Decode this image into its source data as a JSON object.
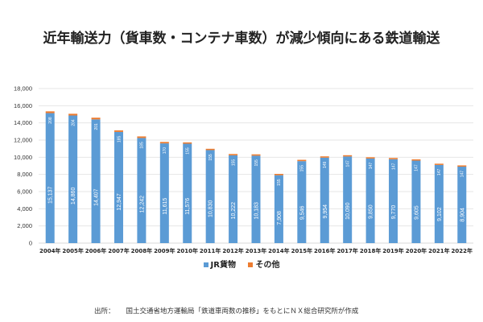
{
  "title": "近年輸送力（貨車数・コンテナ車数）が減少傾向にある鉄道輸送",
  "source": {
    "label": "出所：",
    "text": "国土交通省地方運輸局「鉄道車両数の推移」をもとにＮＸ総合研究所が作成"
  },
  "colors": {
    "jr": "#5b9bd5",
    "other": "#ed7d31",
    "grid": "#e6e6e6"
  },
  "chart_data": {
    "type": "bar",
    "stacked": true,
    "title": "近年輸送力（貨車数・コンテナ車数）が減少傾向にある鉄道輸送",
    "xlabel": "",
    "ylabel": "",
    "ylim": [
      0,
      18000
    ],
    "yticks": [
      0,
      2000,
      4000,
      6000,
      8000,
      10000,
      12000,
      14000,
      16000,
      18000
    ],
    "ytick_labels": [
      "0",
      "2,000",
      "4,000",
      "6,000",
      "8,000",
      "10,000",
      "12,000",
      "14,000",
      "16,000",
      "18,000"
    ],
    "grid": true,
    "legend_position": "bottom",
    "categories": [
      "2004年",
      "2005年",
      "2006年",
      "2007年",
      "2008年",
      "2009年",
      "2010年",
      "2011年",
      "2012年",
      "2013年",
      "2014年",
      "2015年",
      "2016年",
      "2017年",
      "2018年",
      "2019年",
      "2020年",
      "2021年",
      "2022年"
    ],
    "series": [
      {
        "name": "JR貨物",
        "values": [
          15137,
          14860,
          14407,
          12947,
          12242,
          11615,
          11576,
          10830,
          10222,
          10183,
          7908,
          9546,
          9954,
          10090,
          9850,
          9770,
          9605,
          9102,
          8904
        ],
        "labels": [
          "15,137",
          "14,860",
          "14,407",
          "12,947",
          "12,242",
          "11,615",
          "11,576",
          "10,830",
          "10,222",
          "10,183",
          "7,908",
          "9,546",
          "9,954",
          "10,090",
          "9,850",
          "9,770",
          "9,605",
          "9,102",
          "8,904"
        ]
      },
      {
        "name": "その他",
        "values": [
          208,
          204,
          201,
          185,
          185,
          170,
          155,
          155,
          155,
          155,
          155,
          155,
          149,
          147,
          147,
          147,
          147,
          147,
          147
        ],
        "labels": [
          "208",
          "204",
          "201",
          "185",
          "185",
          "170",
          "155",
          "155",
          "155",
          "155",
          "155",
          "155",
          "149",
          "147",
          "147",
          "147",
          "147",
          "147",
          "147"
        ]
      }
    ]
  }
}
